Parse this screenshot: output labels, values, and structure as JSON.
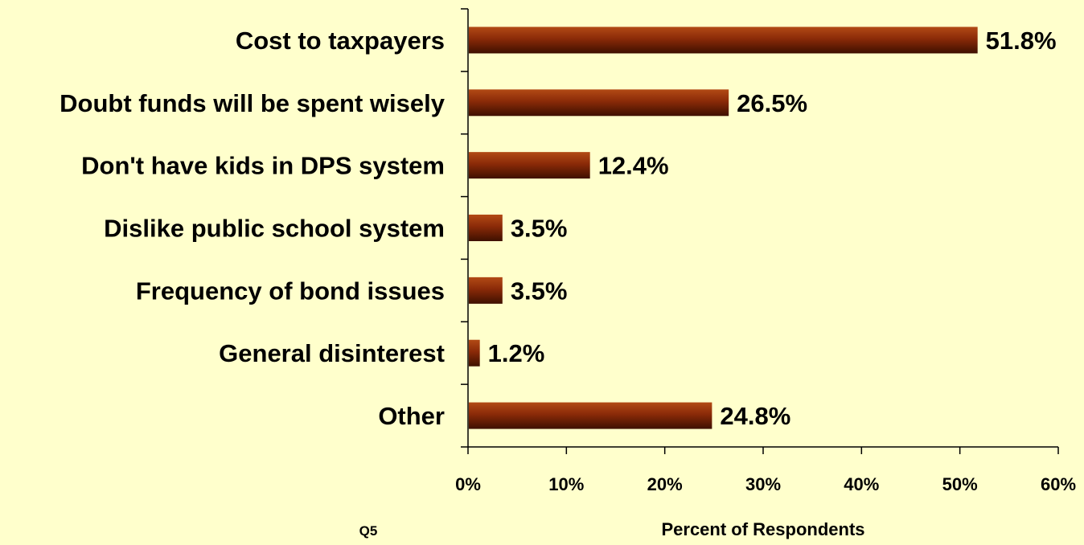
{
  "chart_data": {
    "type": "bar",
    "orientation": "horizontal",
    "categories": [
      "Cost to taxpayers",
      "Doubt funds will be spent wisely",
      "Don't have kids in DPS system",
      "Dislike public school system",
      "Frequency of bond issues",
      "General disinterest",
      "Other"
    ],
    "values": [
      51.8,
      26.5,
      12.4,
      3.5,
      3.5,
      1.2,
      24.8
    ],
    "data_labels": [
      "51.8%",
      "26.5%",
      "12.4%",
      "3.5%",
      "3.5%",
      "1.2%",
      "24.8%"
    ],
    "xlabel": "Percent of Respondents",
    "xlim": [
      0,
      60
    ],
    "xticks": [
      0,
      10,
      20,
      30,
      40,
      50,
      60
    ],
    "xtick_labels": [
      "0%",
      "10%",
      "20%",
      "30%",
      "40%",
      "50%",
      "60%"
    ],
    "footnote": "Q5",
    "grid": false,
    "legend": "none",
    "colors": {
      "background": "#ffffcc",
      "bar_light": "#b24a15",
      "bar_mid": "#8a2a08",
      "bar_dark": "#3e1000",
      "axis": "#000000",
      "text": "#000000"
    }
  }
}
